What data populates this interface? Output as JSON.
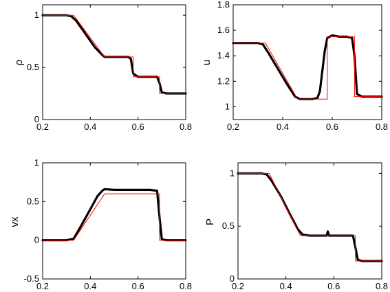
{
  "chart_data": [
    {
      "type": "line",
      "ylabel": "ρ",
      "xlim": [
        0.2,
        0.8
      ],
      "ylim": [
        0,
        1.1
      ],
      "xticks": [
        "0.2",
        "0.4",
        "0.6",
        "0.8"
      ],
      "yticks": [
        "0",
        "0.5",
        "1"
      ],
      "xtick_values": [
        0.2,
        0.4,
        0.6,
        0.8
      ],
      "ytick_values": [
        0,
        0.5,
        1
      ],
      "series": [
        {
          "color": "#000000",
          "style": "numerical",
          "x": [
            0.2,
            0.3,
            0.32,
            0.34,
            0.38,
            0.42,
            0.45,
            0.46,
            0.47,
            0.5,
            0.54,
            0.56,
            0.57,
            0.58,
            0.6,
            0.63,
            0.65,
            0.67,
            0.68,
            0.69,
            0.7,
            0.72,
            0.75,
            0.8
          ],
          "y": [
            1.0,
            1.0,
            0.99,
            0.95,
            0.82,
            0.69,
            0.62,
            0.6,
            0.6,
            0.6,
            0.6,
            0.6,
            0.58,
            0.44,
            0.41,
            0.41,
            0.41,
            0.41,
            0.41,
            0.35,
            0.26,
            0.25,
            0.25,
            0.25
          ]
        },
        {
          "color": "#ff0000",
          "style": "exact",
          "x": [
            0.2,
            0.33,
            0.46,
            0.58,
            0.58,
            0.69,
            0.69,
            0.8
          ],
          "y": [
            1.0,
            1.0,
            0.6,
            0.6,
            0.41,
            0.41,
            0.25,
            0.25
          ]
        }
      ]
    },
    {
      "type": "line",
      "ylabel": "u",
      "xlim": [
        0.2,
        0.8
      ],
      "ylim": [
        0.9,
        1.8
      ],
      "xticks": [
        "0.2",
        "0.4",
        "0.6",
        "0.8"
      ],
      "yticks": [
        "1",
        "1.2",
        "1.4",
        "1.6",
        "1.8"
      ],
      "xtick_values": [
        0.2,
        0.4,
        0.6,
        0.8
      ],
      "ytick_values": [
        1.0,
        1.2,
        1.4,
        1.6,
        1.8
      ],
      "series": [
        {
          "color": "#000000",
          "style": "numerical",
          "x": [
            0.2,
            0.3,
            0.32,
            0.34,
            0.38,
            0.42,
            0.45,
            0.47,
            0.5,
            0.52,
            0.54,
            0.55,
            0.56,
            0.57,
            0.58,
            0.6,
            0.63,
            0.66,
            0.68,
            0.69,
            0.7,
            0.72,
            0.75,
            0.8
          ],
          "y": [
            1.5,
            1.5,
            1.49,
            1.43,
            1.3,
            1.17,
            1.08,
            1.06,
            1.06,
            1.06,
            1.07,
            1.12,
            1.28,
            1.44,
            1.54,
            1.56,
            1.55,
            1.55,
            1.54,
            1.4,
            1.1,
            1.08,
            1.08,
            1.08
          ]
        },
        {
          "color": "#ff0000",
          "style": "exact",
          "x": [
            0.2,
            0.33,
            0.46,
            0.58,
            0.58,
            0.69,
            0.69,
            0.8
          ],
          "y": [
            1.5,
            1.5,
            1.06,
            1.06,
            1.55,
            1.55,
            1.08,
            1.08
          ]
        }
      ]
    },
    {
      "type": "line",
      "ylabel": "vx",
      "xlim": [
        0.2,
        0.8
      ],
      "ylim": [
        -0.5,
        1.0
      ],
      "xticks": [
        "0.2",
        "0.4",
        "0.6",
        "0.8"
      ],
      "yticks": [
        "-0.5",
        "0",
        "0.5",
        "1"
      ],
      "xtick_values": [
        0.2,
        0.4,
        0.6,
        0.8
      ],
      "ytick_values": [
        -0.5,
        0,
        0.5,
        1.0
      ],
      "series": [
        {
          "color": "#000000",
          "style": "numerical",
          "x": [
            0.2,
            0.3,
            0.33,
            0.36,
            0.4,
            0.43,
            0.45,
            0.46,
            0.5,
            0.55,
            0.6,
            0.65,
            0.68,
            0.69,
            0.7,
            0.72,
            0.75,
            0.8
          ],
          "y": [
            0.0,
            0.0,
            0.02,
            0.18,
            0.4,
            0.57,
            0.64,
            0.66,
            0.65,
            0.65,
            0.65,
            0.65,
            0.64,
            0.3,
            0.01,
            0.0,
            0.0,
            0.0
          ]
        },
        {
          "color": "#ff0000",
          "style": "exact",
          "x": [
            0.2,
            0.33,
            0.46,
            0.69,
            0.69,
            0.8
          ],
          "y": [
            0.0,
            0.0,
            0.6,
            0.6,
            0.0,
            0.0
          ]
        }
      ]
    },
    {
      "type": "line",
      "ylabel": "P",
      "xlim": [
        0.2,
        0.8
      ],
      "ylim": [
        0,
        1.1
      ],
      "xticks": [
        "0.2",
        "0.4",
        "0.6",
        "0.8"
      ],
      "yticks": [
        "0",
        "0.5",
        "1"
      ],
      "xtick_values": [
        0.2,
        0.4,
        0.6,
        0.8
      ],
      "ytick_values": [
        0,
        0.5,
        1.0
      ],
      "series": [
        {
          "color": "#000000",
          "style": "numerical",
          "x": [
            0.2,
            0.3,
            0.32,
            0.34,
            0.38,
            0.42,
            0.45,
            0.47,
            0.5,
            0.55,
            0.57,
            0.575,
            0.58,
            0.6,
            0.65,
            0.68,
            0.69,
            0.7,
            0.72,
            0.75,
            0.8
          ],
          "y": [
            1.0,
            1.0,
            0.99,
            0.93,
            0.78,
            0.6,
            0.47,
            0.42,
            0.41,
            0.41,
            0.41,
            0.45,
            0.41,
            0.41,
            0.41,
            0.41,
            0.3,
            0.18,
            0.17,
            0.17,
            0.17
          ]
        },
        {
          "color": "#ff0000",
          "style": "exact",
          "x": [
            0.2,
            0.33,
            0.46,
            0.69,
            0.69,
            0.8
          ],
          "y": [
            1.0,
            1.0,
            0.41,
            0.41,
            0.17,
            0.17
          ]
        }
      ]
    }
  ]
}
